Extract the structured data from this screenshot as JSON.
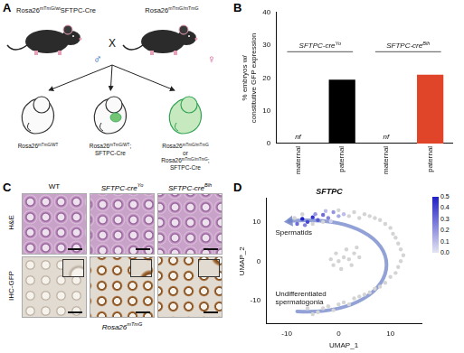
{
  "figure": {
    "panel_letters": [
      "A",
      "B",
      "C",
      "D"
    ],
    "A": {
      "father": [
        [
          {
            "t": "Rosa26"
          },
          {
            "t": "mTmG/wt",
            "sup": true
          },
          {
            "t": "SFTPC-Cre"
          }
        ]
      ],
      "father_sex": "♂",
      "cross": "X",
      "mother": [
        [
          {
            "t": "Rosa26"
          },
          {
            "t": "mTmG/mTmG",
            "sup": true
          }
        ]
      ],
      "mother_sex": "♀",
      "offspring": [
        [
          [
            {
              "t": "Rosa26"
            },
            {
              "t": "mTmG/WT",
              "sup": true
            }
          ]
        ],
        [
          [
            {
              "t": "Rosa26"
            },
            {
              "t": "mTmG/WT",
              "sup": true
            },
            {
              "t": ";"
            }
          ],
          [
            {
              "t": "SFTPC-Cre"
            }
          ]
        ],
        [
          [
            {
              "t": "Rosa26"
            },
            {
              "t": "mTmG/mTmG",
              "sup": true
            }
          ],
          [
            {
              "t": "or"
            }
          ],
          [
            {
              "t": "Rosa26"
            },
            {
              "t": "mTmG/mTmG",
              "sup": true
            },
            {
              "t": ";"
            }
          ],
          [
            {
              "t": "SFTPC-Cre"
            }
          ]
        ]
      ]
    },
    "C": {
      "columns": [
        [
          {
            "t": "WT"
          }
        ],
        [
          {
            "t": "SFTPC-cre"
          },
          {
            "t": "Yo",
            "sup": true
          }
        ],
        [
          {
            "t": "SFTPC-cre"
          },
          {
            "t": "Blh",
            "sup": true
          }
        ]
      ],
      "rows": [
        "H&E",
        "IHC-GFP"
      ],
      "footer": [
        {
          "t": "Rosa26"
        },
        {
          "t": "mTmG",
          "sup": true
        }
      ]
    }
  },
  "chart_data": [
    {
      "type": "bar",
      "categories": [
        "maternal",
        "paternal",
        "maternal",
        "paternal"
      ],
      "values": [
        0,
        19.5,
        0,
        21
      ],
      "colors": [
        "#000000",
        "#000000",
        "#e0452a",
        "#e0452a"
      ],
      "annotations": [
        {
          "text": "nf",
          "category": 0
        },
        {
          "text": "nf",
          "category": 2
        }
      ],
      "groups": [
        {
          "label": [
            {
              "t": "SFTPC-cre"
            },
            {
              "t": "Yo",
              "sup": true
            }
          ],
          "categories": [
            0,
            1
          ]
        },
        {
          "label": [
            {
              "t": "SFTPC-cre"
            },
            {
              "t": "Blh",
              "sup": true
            }
          ],
          "categories": [
            2,
            3
          ]
        }
      ],
      "y_label": [
        "% embryos w/",
        "constitutive GFP expression"
      ],
      "ylim": [
        0,
        40
      ],
      "yticks": [
        0,
        10,
        20,
        30,
        40
      ],
      "grid": false
    },
    {
      "type": "scatter",
      "title": "SFTPC",
      "x_label": "UMAP_1",
      "y_label": "UMAP_2",
      "xlim": [
        -14,
        16
      ],
      "ylim": [
        -16,
        16
      ],
      "xticks": [
        -10,
        0,
        10
      ],
      "yticks": [
        -10,
        0,
        10
      ],
      "x": [
        -4,
        -3,
        -2,
        -1,
        0,
        1,
        2,
        3,
        4,
        5,
        6,
        7,
        8,
        9,
        10,
        11,
        11.5,
        12,
        12.5,
        12,
        11.5,
        11,
        10.5,
        10,
        9,
        8,
        7,
        6,
        5,
        4,
        3,
        2,
        -1,
        0,
        1,
        2,
        3,
        1.5,
        -0.5,
        2.5,
        4,
        0.5,
        3.5,
        -1.5,
        -6,
        -5,
        -3,
        -7,
        -5,
        0,
        -8.5,
        1,
        0,
        -1,
        -2,
        -3,
        -4,
        -5,
        -6,
        -7,
        -8,
        -2.5,
        -4.5,
        -6.5,
        -1.5
      ],
      "y": [
        -13,
        -12,
        -11.5,
        -12.5,
        -11,
        -10.5,
        -11,
        -9.5,
        -9,
        -8.5,
        -8,
        -7,
        -6.5,
        -5.5,
        -4,
        -3,
        -1.5,
        0,
        1.5,
        3,
        4.5,
        6,
        7,
        8.5,
        9.5,
        10.5,
        11,
        11.5,
        12,
        11,
        12.5,
        11.5,
        -1,
        0,
        1,
        0.5,
        2,
        3,
        2,
        -1,
        1,
        -2,
        3.5,
        0.5,
        -12,
        -13.5,
        10,
        12,
        9.5,
        13,
        11,
        12,
        11.5,
        12.5,
        11,
        11.8,
        10.5,
        11.2,
        10,
        10.8,
        9.5,
        12.8,
        12,
        9.2,
        10.2
      ],
      "expression": [
        0,
        0,
        0,
        0,
        0,
        0,
        0,
        0,
        0,
        0,
        0,
        0,
        0,
        0,
        0,
        0,
        0,
        0,
        0,
        0,
        0,
        0,
        0,
        0,
        0,
        0,
        0,
        0,
        0,
        0,
        0,
        0,
        0,
        0,
        0,
        0,
        0,
        0,
        0,
        0,
        0,
        0,
        0,
        0,
        0,
        0,
        0,
        0,
        0,
        0,
        0,
        0.1,
        0.15,
        0.2,
        0.25,
        0.3,
        0.35,
        0.45,
        0.4,
        0.5,
        0.3,
        0.1,
        0.2,
        0.25,
        0.05
      ],
      "color_bar": {
        "range": [
          0,
          0.5
        ],
        "ticks": [
          {
            "value": 0,
            "label": "0.0"
          },
          {
            "value": 0.1,
            "label": "0.1"
          },
          {
            "value": 0.2,
            "label": "0.2"
          },
          {
            "value": 0.3,
            "label": "0.3"
          },
          {
            "value": 0.4,
            "label": "0.4"
          },
          {
            "value": 0.5,
            "label": "0.5"
          }
        ],
        "colors": [
          "#e4e4f2",
          "#1f1fc8"
        ]
      },
      "annotations": [
        "Spermatids",
        "Undifferentiated spermatogonia"
      ],
      "grid": false
    }
  ]
}
